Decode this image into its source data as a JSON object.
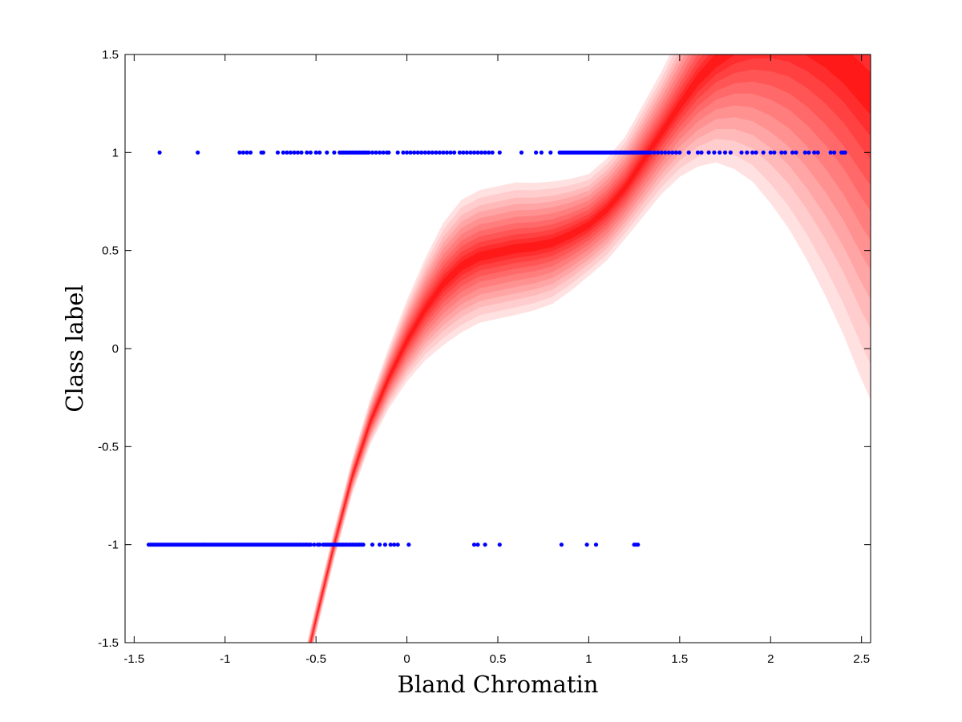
{
  "chart_data": {
    "type": "scatter",
    "title": "",
    "xlabel": "Bland Chromatin",
    "ylabel": "Class label",
    "xlim": [
      -1.55,
      2.55
    ],
    "ylim": [
      -1.5,
      1.5
    ],
    "x_ticks": [
      -1.5,
      -1,
      -0.5,
      0,
      0.5,
      1,
      1.5,
      2,
      2.5
    ],
    "x_tick_labels": [
      "-1.5",
      "-1",
      "-0.5",
      "0",
      "0.5",
      "1",
      "1.5",
      "2",
      "2.5"
    ],
    "y_ticks": [
      -1.5,
      -1,
      -0.5,
      0,
      0.5,
      1,
      1.5
    ],
    "y_tick_labels": [
      "-1.5",
      "-1",
      "-0.5",
      "0",
      "0.5",
      "1",
      "1.5"
    ],
    "grid": false,
    "legend": "none",
    "colors": {
      "points": "#0000ff",
      "band_outer": "#ffe0e0",
      "band_inner": "#ff1a1a"
    },
    "series": [
      {
        "type": "scatter",
        "y": 1,
        "x": [
          -1.36,
          -1.15,
          -0.92,
          -0.9,
          -0.88,
          -0.86,
          -0.8,
          -0.79,
          -0.71,
          -0.68,
          -0.66,
          -0.64,
          -0.62,
          -0.6,
          -0.58,
          -0.55,
          -0.53,
          -0.5,
          -0.48,
          -0.44,
          -0.4,
          -0.37,
          -0.36,
          -0.35,
          -0.34,
          -0.33,
          -0.32,
          -0.31,
          -0.3,
          -0.29,
          -0.28,
          -0.27,
          -0.26,
          -0.25,
          -0.24,
          -0.23,
          -0.22,
          -0.21,
          -0.19,
          -0.17,
          -0.15,
          -0.13,
          -0.11,
          -0.1,
          -0.05,
          -0.02,
          0.0,
          0.02,
          0.04,
          0.06,
          0.08,
          0.1,
          0.12,
          0.14,
          0.16,
          0.18,
          0.2,
          0.22,
          0.24,
          0.26,
          0.29,
          0.31,
          0.33,
          0.35,
          0.37,
          0.39,
          0.41,
          0.43,
          0.45,
          0.47,
          0.51,
          0.63,
          0.71,
          0.74,
          0.79,
          0.84,
          0.85,
          0.86,
          0.87,
          0.88,
          0.89,
          0.9,
          0.91,
          0.92,
          0.93,
          0.94,
          0.95,
          0.96,
          0.97,
          0.98,
          0.99,
          1.0,
          1.01,
          1.02,
          1.03,
          1.04,
          1.05,
          1.06,
          1.07,
          1.08,
          1.09,
          1.1,
          1.11,
          1.12,
          1.13,
          1.14,
          1.15,
          1.16,
          1.17,
          1.18,
          1.19,
          1.2,
          1.21,
          1.22,
          1.23,
          1.24,
          1.25,
          1.26,
          1.27,
          1.28,
          1.29,
          1.3,
          1.31,
          1.32,
          1.33,
          1.34,
          1.36,
          1.38,
          1.4,
          1.42,
          1.44,
          1.46,
          1.48,
          1.5,
          1.55,
          1.6,
          1.62,
          1.66,
          1.69,
          1.72,
          1.75,
          1.78,
          1.84,
          1.87,
          1.9,
          1.92,
          1.96,
          2.0,
          2.02,
          2.06,
          2.08,
          2.12,
          2.14,
          2.19,
          2.21,
          2.24,
          2.26,
          2.33,
          2.35,
          2.39,
          2.4,
          2.41
        ]
      },
      {
        "type": "scatter",
        "y": -1,
        "x": [
          -1.42,
          -1.41,
          -1.4,
          -1.39,
          -1.38,
          -1.37,
          -1.36,
          -1.35,
          -1.34,
          -1.33,
          -1.32,
          -1.31,
          -1.3,
          -1.29,
          -1.28,
          -1.27,
          -1.26,
          -1.25,
          -1.24,
          -1.23,
          -1.22,
          -1.21,
          -1.2,
          -1.19,
          -1.18,
          -1.17,
          -1.16,
          -1.15,
          -1.14,
          -1.13,
          -1.12,
          -1.11,
          -1.1,
          -1.09,
          -1.08,
          -1.07,
          -1.06,
          -1.05,
          -1.04,
          -1.03,
          -1.02,
          -1.01,
          -1.0,
          -0.99,
          -0.98,
          -0.97,
          -0.96,
          -0.95,
          -0.94,
          -0.93,
          -0.92,
          -0.91,
          -0.9,
          -0.89,
          -0.88,
          -0.87,
          -0.86,
          -0.85,
          -0.84,
          -0.83,
          -0.82,
          -0.81,
          -0.8,
          -0.79,
          -0.78,
          -0.77,
          -0.76,
          -0.75,
          -0.74,
          -0.73,
          -0.72,
          -0.71,
          -0.7,
          -0.69,
          -0.68,
          -0.67,
          -0.66,
          -0.65,
          -0.64,
          -0.63,
          -0.62,
          -0.61,
          -0.6,
          -0.59,
          -0.58,
          -0.57,
          -0.56,
          -0.55,
          -0.54,
          -0.53,
          -0.51,
          -0.49,
          -0.48,
          -0.46,
          -0.45,
          -0.44,
          -0.43,
          -0.42,
          -0.41,
          -0.4,
          -0.39,
          -0.38,
          -0.37,
          -0.36,
          -0.35,
          -0.34,
          -0.33,
          -0.32,
          -0.31,
          -0.3,
          -0.29,
          -0.28,
          -0.27,
          -0.26,
          -0.25,
          -0.24,
          -0.19,
          -0.15,
          -0.12,
          -0.09,
          -0.07,
          -0.05,
          0.01,
          0.37,
          0.39,
          0.43,
          0.51,
          0.85,
          0.99,
          1.04,
          1.25,
          1.26,
          1.27
        ]
      },
      {
        "type": "band",
        "name": "",
        "x": [
          -0.6,
          -0.5,
          -0.4,
          -0.3,
          -0.2,
          -0.1,
          0.0,
          0.1,
          0.2,
          0.3,
          0.4,
          0.5,
          0.6,
          0.7,
          0.8,
          0.9,
          1.0,
          1.1,
          1.2,
          1.3,
          1.4,
          1.5,
          1.6,
          1.7,
          1.8,
          1.9,
          2.0,
          2.1,
          2.2,
          2.3,
          2.4,
          2.5,
          2.55
        ],
        "mean": [
          -1.78,
          -1.38,
          -1.0,
          -0.65,
          -0.37,
          -0.15,
          0.04,
          0.2,
          0.33,
          0.42,
          0.47,
          0.49,
          0.51,
          0.52,
          0.54,
          0.58,
          0.63,
          0.71,
          0.82,
          0.96,
          1.1,
          1.24,
          1.37,
          1.47,
          1.54,
          1.58,
          1.6,
          1.6,
          1.57,
          1.52,
          1.45,
          1.35,
          1.3
        ],
        "sd": [
          0.03,
          0.03,
          0.03,
          0.035,
          0.045,
          0.06,
          0.08,
          0.1,
          0.12,
          0.13,
          0.13,
          0.13,
          0.13,
          0.125,
          0.12,
          0.11,
          0.1,
          0.1,
          0.1,
          0.11,
          0.12,
          0.14,
          0.17,
          0.2,
          0.24,
          0.28,
          0.33,
          0.38,
          0.43,
          0.48,
          0.53,
          0.58,
          0.6
        ]
      }
    ]
  }
}
